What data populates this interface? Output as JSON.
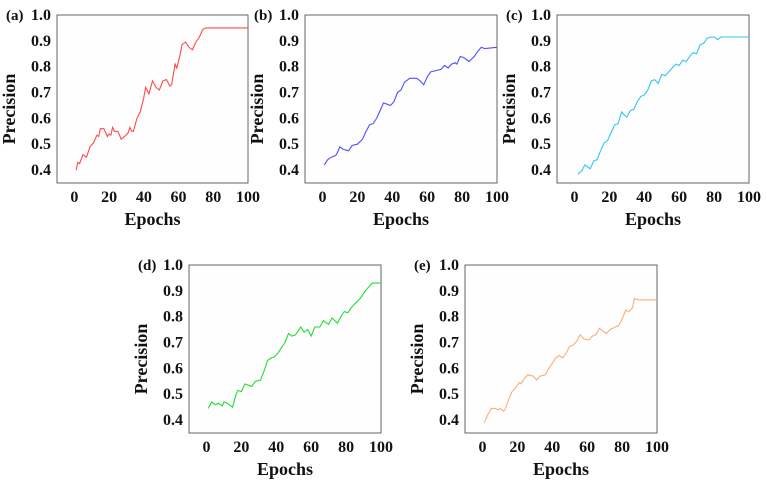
{
  "chart_data": [
    {
      "type": "line",
      "panel_label": "(a)",
      "xlabel": "Epochs",
      "ylabel": "Precision",
      "xlim": [
        -10,
        100
      ],
      "ylim": [
        0.35,
        1.0
      ],
      "xticks": [
        "0",
        "20",
        "40",
        "60",
        "80",
        "100"
      ],
      "yticks": [
        "0.4",
        "0.5",
        "0.6",
        "0.7",
        "0.8",
        "0.9",
        "1.0"
      ],
      "grid": false,
      "color": "#ff4a4a",
      "x": [
        1,
        2,
        3,
        5,
        6,
        7,
        9,
        11,
        13,
        14,
        15,
        17,
        19,
        20,
        21,
        22,
        23,
        25,
        27,
        29,
        31,
        32,
        33,
        34,
        36,
        38,
        40,
        41,
        43,
        45,
        47,
        49,
        51,
        53,
        55,
        56,
        58,
        59,
        61,
        62,
        64,
        66,
        68,
        70,
        72,
        74,
        76,
        80,
        85,
        100
      ],
      "y": [
        0.4,
        0.43,
        0.425,
        0.46,
        0.455,
        0.45,
        0.49,
        0.505,
        0.535,
        0.53,
        0.56,
        0.56,
        0.53,
        0.54,
        0.535,
        0.565,
        0.55,
        0.55,
        0.52,
        0.53,
        0.545,
        0.565,
        0.55,
        0.55,
        0.6,
        0.625,
        0.68,
        0.72,
        0.695,
        0.745,
        0.72,
        0.71,
        0.745,
        0.75,
        0.725,
        0.73,
        0.81,
        0.795,
        0.85,
        0.885,
        0.895,
        0.875,
        0.865,
        0.895,
        0.915,
        0.945,
        0.95,
        0.95,
        0.95,
        0.95
      ]
    },
    {
      "type": "line",
      "panel_label": "(b)",
      "xlabel": "Epochs",
      "ylabel": "Precision",
      "xlim": [
        -10,
        100
      ],
      "ylim": [
        0.35,
        1.0
      ],
      "xticks": [
        "0",
        "20",
        "40",
        "60",
        "80",
        "100"
      ],
      "yticks": [
        "0.4",
        "0.5",
        "0.6",
        "0.7",
        "0.8",
        "0.9",
        "1.0"
      ],
      "grid": false,
      "color": "#4f4fff",
      "x": [
        1,
        3,
        5,
        7,
        8,
        10,
        12,
        15,
        17,
        20,
        23,
        25,
        27,
        29,
        31,
        33,
        35,
        37,
        39,
        41,
        43,
        45,
        47,
        50,
        54,
        56,
        58,
        60,
        62,
        65,
        68,
        70,
        72,
        74,
        76,
        77,
        79,
        81,
        84,
        87,
        89,
        91,
        93,
        100
      ],
      "y": [
        0.42,
        0.44,
        0.45,
        0.455,
        0.46,
        0.49,
        0.48,
        0.475,
        0.495,
        0.5,
        0.52,
        0.55,
        0.575,
        0.58,
        0.6,
        0.63,
        0.66,
        0.655,
        0.65,
        0.665,
        0.7,
        0.71,
        0.74,
        0.755,
        0.755,
        0.745,
        0.73,
        0.76,
        0.78,
        0.785,
        0.79,
        0.805,
        0.795,
        0.81,
        0.815,
        0.81,
        0.84,
        0.835,
        0.82,
        0.84,
        0.86,
        0.875,
        0.87,
        0.875
      ]
    },
    {
      "type": "line",
      "panel_label": "(c)",
      "xlabel": "Epochs",
      "ylabel": "Precision",
      "xlim": [
        -10,
        100
      ],
      "ylim": [
        0.35,
        1.0
      ],
      "xticks": [
        "0",
        "20",
        "40",
        "60",
        "80",
        "100"
      ],
      "yticks": [
        "0.4",
        "0.5",
        "0.6",
        "0.7",
        "0.8",
        "0.9",
        "1.0"
      ],
      "grid": false,
      "color": "#33c6f2",
      "x": [
        2,
        4,
        6,
        8,
        9,
        11,
        13,
        15,
        17,
        19,
        21,
        23,
        25,
        27,
        29,
        30,
        32,
        34,
        36,
        38,
        40,
        42,
        44,
        46,
        48,
        50,
        52,
        54,
        56,
        58,
        60,
        62,
        64,
        66,
        68,
        70,
        72,
        74,
        76,
        78,
        80,
        82,
        84,
        100
      ],
      "y": [
        0.385,
        0.395,
        0.42,
        0.41,
        0.405,
        0.435,
        0.44,
        0.475,
        0.505,
        0.515,
        0.545,
        0.575,
        0.58,
        0.625,
        0.61,
        0.605,
        0.63,
        0.635,
        0.665,
        0.685,
        0.69,
        0.71,
        0.745,
        0.75,
        0.735,
        0.77,
        0.765,
        0.78,
        0.795,
        0.81,
        0.805,
        0.825,
        0.82,
        0.84,
        0.855,
        0.85,
        0.885,
        0.89,
        0.91,
        0.915,
        0.915,
        0.905,
        0.915,
        0.915
      ]
    },
    {
      "type": "line",
      "panel_label": "(d)",
      "xlabel": "Epochs",
      "ylabel": "Precision",
      "xlim": [
        -10,
        100
      ],
      "ylim": [
        0.35,
        1.0
      ],
      "xticks": [
        "0",
        "20",
        "40",
        "60",
        "80",
        "100"
      ],
      "yticks": [
        "0.4",
        "0.5",
        "0.6",
        "0.7",
        "0.8",
        "0.9",
        "1.0"
      ],
      "grid": false,
      "color": "#22dd33",
      "x": [
        1,
        3,
        5,
        7,
        9,
        10,
        12,
        14,
        15,
        17,
        18,
        20,
        22,
        24,
        26,
        28,
        31,
        33,
        35,
        37,
        39,
        41,
        43,
        45,
        47,
        49,
        51,
        54,
        56,
        58,
        60,
        62,
        65,
        67,
        70,
        72,
        75,
        77,
        79,
        81,
        83,
        85,
        88,
        91,
        95,
        100
      ],
      "y": [
        0.445,
        0.47,
        0.46,
        0.465,
        0.455,
        0.47,
        0.465,
        0.455,
        0.45,
        0.5,
        0.515,
        0.51,
        0.54,
        0.535,
        0.53,
        0.55,
        0.555,
        0.59,
        0.63,
        0.64,
        0.645,
        0.66,
        0.68,
        0.7,
        0.735,
        0.725,
        0.73,
        0.76,
        0.74,
        0.75,
        0.725,
        0.76,
        0.76,
        0.785,
        0.77,
        0.795,
        0.775,
        0.8,
        0.82,
        0.815,
        0.835,
        0.85,
        0.87,
        0.9,
        0.93,
        0.93
      ]
    },
    {
      "type": "line",
      "panel_label": "(e)",
      "xlabel": "Epochs",
      "ylabel": "Precision",
      "xlim": [
        -10,
        100
      ],
      "ylim": [
        0.35,
        1.0
      ],
      "xticks": [
        "0",
        "20",
        "40",
        "60",
        "80",
        "100"
      ],
      "yticks": [
        "0.4",
        "0.5",
        "0.6",
        "0.7",
        "0.8",
        "0.9",
        "1.0"
      ],
      "grid": false,
      "color": "#f8ae78",
      "x": [
        1,
        3,
        5,
        7,
        9,
        10,
        12,
        13,
        15,
        17,
        19,
        21,
        22,
        24,
        26,
        29,
        31,
        33,
        36,
        38,
        40,
        42,
        44,
        46,
        48,
        50,
        52,
        54,
        56,
        58,
        61,
        63,
        65,
        67,
        69,
        71,
        73,
        76,
        78,
        80,
        82,
        84,
        86,
        87,
        90,
        93,
        96,
        100
      ],
      "y": [
        0.39,
        0.42,
        0.445,
        0.445,
        0.44,
        0.445,
        0.435,
        0.44,
        0.48,
        0.51,
        0.525,
        0.545,
        0.54,
        0.56,
        0.575,
        0.57,
        0.555,
        0.57,
        0.575,
        0.6,
        0.62,
        0.64,
        0.65,
        0.64,
        0.66,
        0.685,
        0.69,
        0.705,
        0.73,
        0.715,
        0.71,
        0.725,
        0.73,
        0.755,
        0.745,
        0.735,
        0.75,
        0.76,
        0.765,
        0.79,
        0.825,
        0.82,
        0.835,
        0.87,
        0.865,
        0.865,
        0.865,
        0.865
      ]
    }
  ]
}
